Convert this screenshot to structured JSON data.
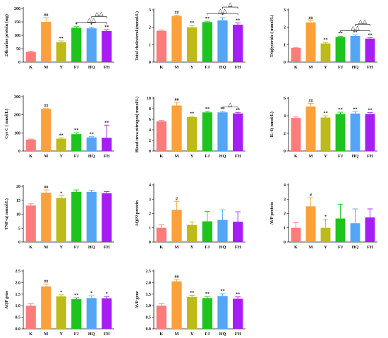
{
  "colors": [
    "#fc7c7c",
    "#fba03a",
    "#bdbb1a",
    "#1ec41e",
    "#55a5f7",
    "#a61ef5"
  ],
  "chart_data": [
    {
      "type": "bar",
      "ylabel": "24h urine protein (mg)",
      "categories": [
        "K",
        "M",
        "Y",
        "FJ",
        "HQ",
        "FH"
      ],
      "values": [
        38,
        150,
        74,
        128,
        126,
        116
      ],
      "errors": [
        3,
        16,
        5,
        4,
        4,
        5
      ],
      "ylim": [
        0,
        200
      ],
      "yticks": [
        "0",
        "50",
        "100",
        "150",
        "200"
      ],
      "sig": [
        "",
        "##",
        "**",
        "*",
        "*",
        "**"
      ],
      "comparisons": [
        {
          "from": 3,
          "to": 5,
          "symbol": "△△",
          "level": 1
        },
        {
          "from": 4,
          "to": 5,
          "symbol": "△△",
          "level": 2
        }
      ]
    },
    {
      "type": "bar",
      "ylabel": "Total cholesterol (mmol/L)",
      "categories": [
        "K",
        "M",
        "Y",
        "FJ",
        "HQ",
        "FH"
      ],
      "values": [
        1.8,
        2.65,
        2.0,
        2.3,
        2.4,
        2.15
      ],
      "errors": [
        0.05,
        0.05,
        0.1,
        0.05,
        0.15,
        0.1
      ],
      "ylim": [
        0,
        3
      ],
      "yticks": [
        "0",
        "1",
        "2",
        "3"
      ],
      "sig": [
        "",
        "##",
        "**",
        "**",
        "*",
        "**"
      ],
      "comparisons": [
        {
          "from": 3,
          "to": 5,
          "symbol": "△△",
          "level": 1
        },
        {
          "from": 4,
          "to": 5,
          "symbol": "△",
          "level": 2
        }
      ]
    },
    {
      "type": "bar",
      "ylabel": "Triglyceride ( mmol/L)",
      "categories": [
        "K",
        "M",
        "Y",
        "FJ",
        "HQ",
        "FH"
      ],
      "values": [
        0.82,
        2.28,
        1.07,
        1.45,
        1.5,
        1.35
      ],
      "errors": [
        0.03,
        0.1,
        0.06,
        0.04,
        0.06,
        0.05
      ],
      "ylim": [
        0,
        3
      ],
      "yticks": [
        "0",
        "1",
        "2",
        "3"
      ],
      "sig": [
        "",
        "##",
        "**",
        "**",
        "**",
        "**"
      ],
      "comparisons": [
        {
          "from": 3,
          "to": 5,
          "symbol": "△△",
          "level": 1
        },
        {
          "from": 4,
          "to": 5,
          "symbol": "△△",
          "level": 2
        }
      ]
    },
    {
      "type": "bar",
      "ylabel": "Cys C ( nmol/L)",
      "categories": [
        "K",
        "M",
        "Y",
        "FJ",
        "HQ",
        "FH"
      ],
      "values": [
        63,
        232,
        68,
        93,
        75,
        73
      ],
      "errors": [
        3,
        3,
        5,
        8,
        4,
        70
      ],
      "ylim": [
        0,
        300
      ],
      "yticks": [
        "0",
        "100",
        "200",
        "300"
      ],
      "sig": [
        "",
        "##",
        "**",
        "**",
        "**",
        "**"
      ],
      "comparisons": []
    },
    {
      "type": "bar",
      "ylabel": "Blood urea nitrogen( mmol/L)",
      "categories": [
        "K",
        "M",
        "Y",
        "FJ",
        "HQ",
        "FH"
      ],
      "values": [
        5.6,
        8.6,
        6.4,
        7.3,
        7.3,
        7.1
      ],
      "errors": [
        0.2,
        0.6,
        0.2,
        0.2,
        0.2,
        0.2
      ],
      "ylim": [
        0,
        10
      ],
      "yticks": [
        "0",
        "2",
        "4",
        "6",
        "8",
        "10"
      ],
      "sig": [
        "",
        "##",
        "**",
        "**",
        "**",
        "**"
      ],
      "comparisons": [
        {
          "from": 4,
          "to": 5,
          "symbol": "△",
          "level": 1
        }
      ]
    },
    {
      "type": "bar",
      "ylabel": "IL-6( nmol/L)",
      "categories": [
        "K",
        "M",
        "Y",
        "FJ",
        "HQ",
        "FH"
      ],
      "values": [
        3.75,
        5.05,
        3.8,
        4.2,
        4.25,
        4.2
      ],
      "errors": [
        0.1,
        0.35,
        0.2,
        0.2,
        0.2,
        0.15
      ],
      "ylim": [
        0,
        6
      ],
      "yticks": [
        "0",
        "2",
        "4",
        "6"
      ],
      "sig": [
        "",
        "##",
        "**",
        "**",
        "**",
        "**"
      ],
      "comparisons": []
    },
    {
      "type": "bar",
      "ylabel": "TNF-α( mmol/L)",
      "categories": [
        "K",
        "M",
        "Y",
        "FJ",
        "HQ",
        "FH"
      ],
      "values": [
        13.1,
        17.7,
        15.8,
        18.0,
        18.0,
        17.5
      ],
      "errors": [
        0.6,
        1.0,
        0.8,
        0.7,
        0.6,
        0.6
      ],
      "ylim": [
        0,
        20
      ],
      "yticks": [
        "0",
        "5",
        "10",
        "15",
        "20"
      ],
      "sig": [
        "",
        "##",
        "*",
        "",
        "",
        ""
      ],
      "comparisons": []
    },
    {
      "type": "bar",
      "ylabel": "AQP2 protein",
      "categories": [
        "K",
        "M",
        "Y",
        "FJ",
        "HQ",
        "FH"
      ],
      "values": [
        1.0,
        2.25,
        1.2,
        1.45,
        1.55,
        1.42
      ],
      "errors": [
        0.2,
        0.6,
        0.2,
        0.7,
        0.7,
        0.7
      ],
      "ylim": [
        0,
        4
      ],
      "yticks": [
        "0",
        "1",
        "2",
        "3",
        "4"
      ],
      "sig": [
        "",
        "#",
        "",
        "",
        "",
        ""
      ],
      "comparisons": []
    },
    {
      "type": "bar",
      "ylabel": "AVP protein",
      "categories": [
        "K",
        "M",
        "Y",
        "FJ",
        "HQ",
        "FH"
      ],
      "values": [
        1.0,
        2.5,
        1.0,
        1.65,
        1.32,
        1.72
      ],
      "errors": [
        0.35,
        0.6,
        0.6,
        1.0,
        1.0,
        0.6
      ],
      "ylim": [
        0,
        4
      ],
      "yticks": [
        "0",
        "1",
        "2",
        "3",
        "4"
      ],
      "sig": [
        "",
        "#",
        "*",
        "",
        "",
        ""
      ],
      "comparisons": []
    },
    {
      "type": "bar",
      "ylabel": "AQP gene",
      "categories": [
        "K",
        "M",
        "Y",
        "FJ",
        "HQ",
        "FH"
      ],
      "values": [
        1.0,
        1.83,
        1.4,
        1.28,
        1.33,
        1.32
      ],
      "errors": [
        0.08,
        0.1,
        0.07,
        0.06,
        0.1,
        0.08
      ],
      "ylim": [
        0,
        2.5
      ],
      "yticks": [
        "0.0",
        "0.5",
        "1.0",
        "1.5",
        "2.0",
        "2.5"
      ],
      "sig": [
        "",
        "##",
        "*",
        "**",
        "*",
        "*"
      ],
      "comparisons": []
    },
    {
      "type": "bar",
      "ylabel": "AVP gene",
      "categories": [
        "K",
        "M",
        "Y",
        "FJ",
        "HQ",
        "FH"
      ],
      "values": [
        1.0,
        2.05,
        1.38,
        1.33,
        1.42,
        1.3
      ],
      "errors": [
        0.08,
        0.08,
        0.07,
        0.07,
        0.1,
        0.08
      ],
      "ylim": [
        0,
        2.5
      ],
      "yticks": [
        "0.0",
        "0.5",
        "1.0",
        "1.5",
        "2.0",
        "2.5"
      ],
      "sig": [
        "",
        "##",
        "**",
        "**",
        "**",
        "**"
      ],
      "comparisons": []
    }
  ]
}
